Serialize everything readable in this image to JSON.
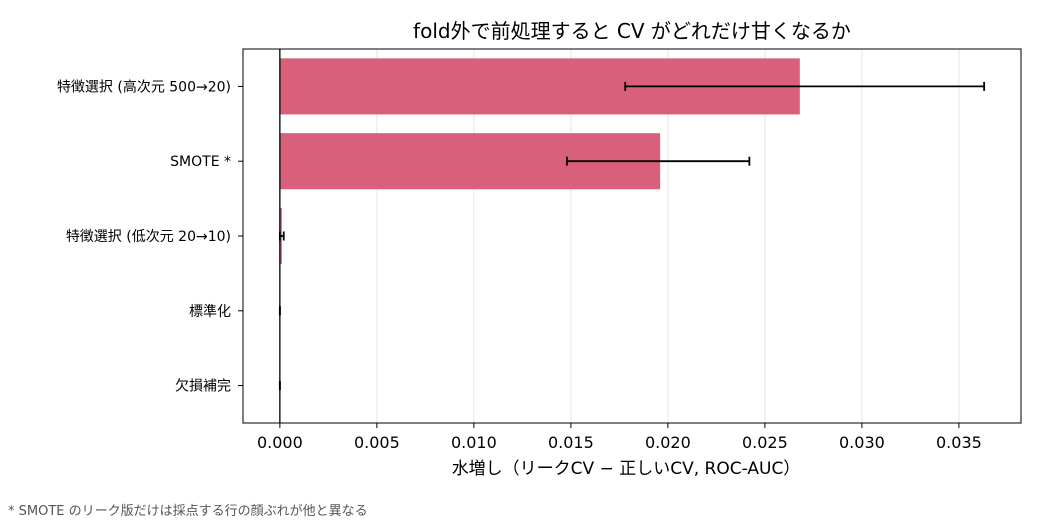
{
  "chart_data": {
    "type": "bar",
    "orientation": "horizontal",
    "title": "fold外で前処理すると CV がどれだけ甘くなるか",
    "xlabel": "水増し（リークCV − 正しいCV, ROC-AUC）",
    "ylabel": "",
    "categories": [
      "特徴選択 (高次元 500→20)",
      "SMOTE *",
      "特徴選択 (低次元 20→10)",
      "標準化",
      "欠損補完"
    ],
    "values": [
      0.0268,
      0.0196,
      0.0001,
      0.0,
      0.0
    ],
    "error_low": [
      0.0178,
      0.0148,
      0.0,
      0.0,
      0.0
    ],
    "error_high": [
      0.0363,
      0.0242,
      0.0002,
      0.0,
      0.0
    ],
    "xlim": [
      -0.0019,
      0.0382
    ],
    "xticks": [
      "0.000",
      "0.005",
      "0.010",
      "0.015",
      "0.020",
      "0.025",
      "0.030",
      "0.035"
    ],
    "xtick_values": [
      0,
      0.005,
      0.01,
      0.015,
      0.02,
      0.025,
      0.03,
      0.035
    ],
    "grid": "vertical",
    "bar_color": "#d9607a",
    "reference_line": 0
  },
  "footnote": "* SMOTE のリーク版だけは採点する行の顔ぶれが他と異なる"
}
